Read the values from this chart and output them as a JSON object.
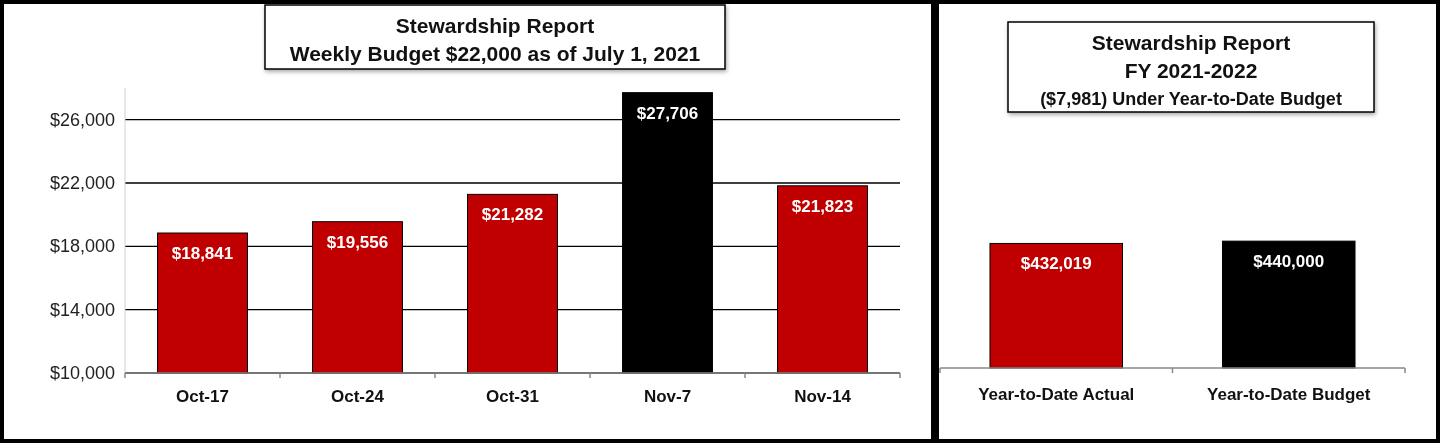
{
  "chart_data": [
    {
      "type": "bar",
      "title": "Stewardship Report",
      "subtitle": "Weekly Budget $22,000 as of July 1, 2021",
      "categories": [
        "Oct-17",
        "Oct-24",
        "Oct-31",
        "Nov-7",
        "Nov-14"
      ],
      "values": [
        18841,
        19556,
        21282,
        27706,
        21823
      ],
      "colors": [
        "#c00000",
        "#c00000",
        "#c00000",
        "#000000",
        "#c00000"
      ],
      "ylim": [
        10000,
        28000
      ],
      "yticks": [
        {
          "value": 10000,
          "label": "$10,000"
        },
        {
          "value": 14000,
          "label": "$14,000"
        },
        {
          "value": 18000,
          "label": "$18,000"
        },
        {
          "value": 22000,
          "label": "$22,000"
        },
        {
          "value": 26000,
          "label": "$26,000"
        }
      ],
      "grid": "y",
      "data_labels": true,
      "value_labels": [
        "$18,841",
        "$19,556",
        "$21,282",
        "$27,706",
        "$21,823"
      ]
    },
    {
      "type": "bar",
      "title": "Stewardship Report",
      "subtitle": "FY 2021-2022\n($7,981) Under Year-to-Date Budget",
      "categories": [
        "Year-to-Date Actual",
        "Year-to-Date Budget"
      ],
      "values": [
        432019,
        440000
      ],
      "colors": [
        "#c00000",
        "#000000"
      ],
      "tick_labels": "x",
      "data_labels": true,
      "value_labels": [
        "$432,019",
        "$440,000"
      ]
    }
  ]
}
